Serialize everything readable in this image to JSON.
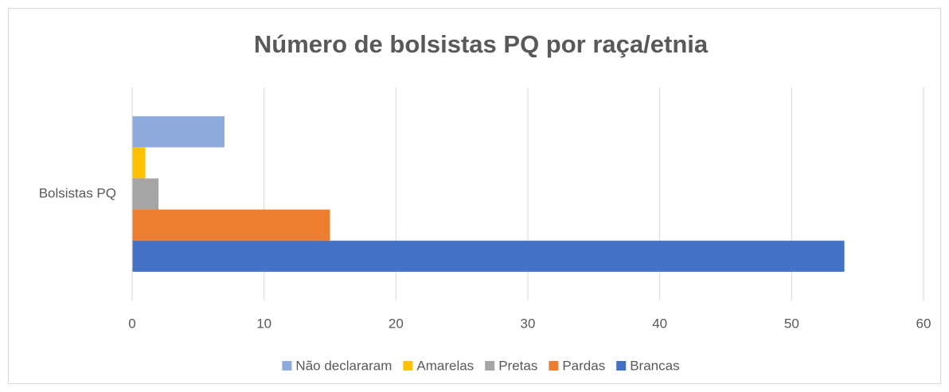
{
  "chart_data": {
    "type": "bar",
    "orientation": "horizontal",
    "title": "Número de bolsistas PQ por raça/etnia",
    "categories": [
      "Bolsistas PQ"
    ],
    "series": [
      {
        "name": "Não declararam",
        "color": "#8faadc",
        "values": [
          7
        ]
      },
      {
        "name": "Amarelas",
        "color": "#ffc000",
        "values": [
          1
        ]
      },
      {
        "name": "Pretas",
        "color": "#a5a5a5",
        "values": [
          2
        ]
      },
      {
        "name": "Pardas",
        "color": "#ed7d31",
        "values": [
          15
        ]
      },
      {
        "name": "Brancas",
        "color": "#4472c4",
        "values": [
          54
        ]
      }
    ],
    "xlim": [
      0,
      60
    ],
    "xticks": [
      0,
      10,
      20,
      30,
      40,
      50,
      60
    ],
    "grid": true,
    "legend": "bottom"
  }
}
